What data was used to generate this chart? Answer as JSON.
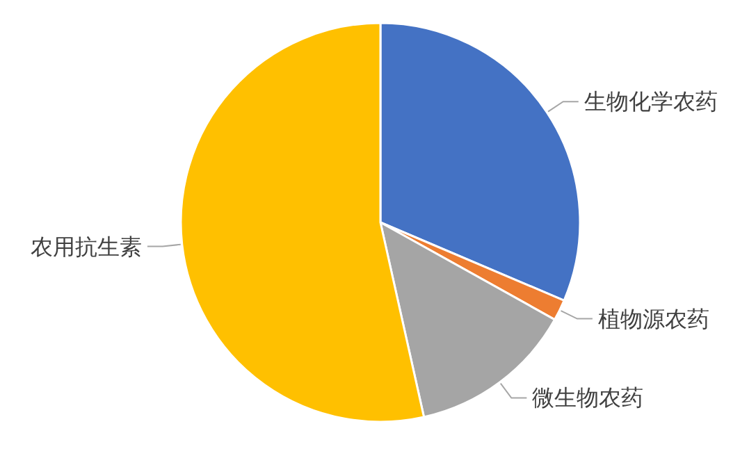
{
  "chart_data": {
    "type": "pie",
    "categories": [
      "生物化学农药",
      "植物源农药",
      "微生物农药",
      "农用抗生素"
    ],
    "values": [
      31.4,
      1.7,
      13.4,
      53.5
    ],
    "colors": [
      "#4472c4",
      "#ed7d31",
      "#a5a5a5",
      "#ffc000"
    ]
  }
}
